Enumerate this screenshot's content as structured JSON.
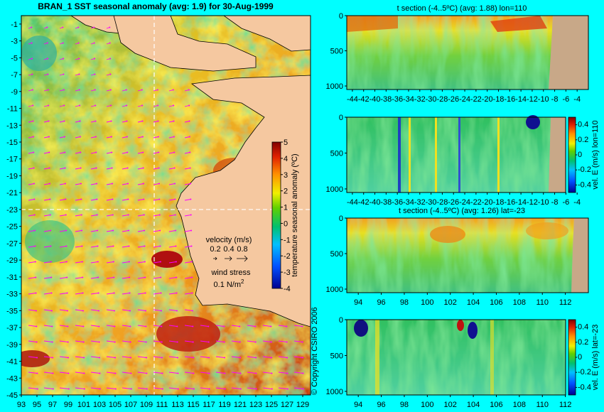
{
  "chart_data": [
    {
      "type": "heatmap",
      "title": "BRAN_1  SST seasonal anomaly  (avg: 1.9) for 30-Aug-1999",
      "x_ticks": [
        93,
        95,
        97,
        99,
        101,
        103,
        105,
        107,
        109,
        111,
        113,
        115,
        117,
        119,
        121,
        123,
        125,
        127,
        129
      ],
      "x_tick_labels": [
        "93",
        "95",
        "97",
        "99",
        "101",
        "103",
        "105",
        "107",
        "109",
        "111",
        "113",
        "115",
        "117",
        "119",
        "121",
        "123",
        "125",
        "127",
        "129"
      ],
      "y_ticks": [
        -1,
        -3,
        -5,
        -7,
        -9,
        -11,
        -13,
        -15,
        -17,
        -19,
        -21,
        -23,
        -25,
        -27,
        -29,
        -31,
        -33,
        -35,
        -37,
        -39,
        -41,
        -43,
        -45
      ],
      "y_tick_labels": [
        "-1",
        "-3",
        "-5",
        "-7",
        "-9",
        "-11",
        "-13",
        "-15",
        "-17",
        "-19",
        "-21",
        "-23",
        "-25",
        "-27",
        "-29",
        "-31",
        "-33",
        "-35",
        "-37",
        "-39",
        "-41",
        "-43",
        "-45"
      ],
      "xlim": [
        93,
        130
      ],
      "ylim": [
        -45,
        0
      ],
      "colorbar": {
        "label": "temperature seasonal anomaly (ºC)",
        "ticks": [
          5,
          4,
          3,
          2,
          1,
          0,
          -1,
          -2,
          -3,
          -4
        ],
        "tick_labels": [
          "5",
          "4",
          "3",
          "2",
          "1",
          "0",
          "-1",
          "-2",
          "-3",
          "-4"
        ],
        "range": [
          -4,
          5
        ]
      },
      "legend": {
        "velocity_title": "velocity (m/s)",
        "velocity_labels": [
          "0.2",
          "0.4",
          "0.8"
        ],
        "wind_title": "wind stress",
        "wind_value": "0.1 N/m",
        "wind_superscript": "2"
      },
      "section_lines": {
        "lon": 110,
        "lat": -23
      }
    },
    {
      "type": "heatmap",
      "title": "t section (-4..5ºC) (avg: 1.88) lon=110",
      "x_ticks": [
        -44,
        -42,
        -40,
        -38,
        -36,
        -34,
        -32,
        -30,
        -28,
        -26,
        -24,
        -22,
        -20,
        -18,
        -16,
        -14,
        -12,
        -10,
        -8,
        -6,
        -4
      ],
      "x_tick_labels": [
        "-44",
        "-42",
        "-40",
        "-38",
        "-36",
        "-34",
        "-32",
        "-30",
        "-28",
        "-26",
        "-24",
        "-22",
        "-20",
        "-18",
        "-16",
        "-14",
        "-12",
        "-10",
        "-8",
        "-6",
        "-4"
      ],
      "y_ticks": [
        0,
        500,
        1000
      ],
      "y_tick_labels": [
        "0",
        "500",
        "1000"
      ],
      "xlim": [
        -45,
        -2
      ],
      "ylim": [
        1050,
        0
      ]
    },
    {
      "type": "heatmap",
      "title": "",
      "x_ticks": [
        -44,
        -42,
        -40,
        -38,
        -36,
        -34,
        -32,
        -30,
        -28,
        -26,
        -24,
        -22,
        -20,
        -18,
        -16,
        -14,
        -12,
        -10,
        -8,
        -6,
        -4
      ],
      "x_tick_labels": [
        "-44",
        "-42",
        "-40",
        "-38",
        "-36",
        "-34",
        "-32",
        "-30",
        "-28",
        "-26",
        "-24",
        "-22",
        "-20",
        "-18",
        "-16",
        "-14",
        "-12",
        "-10",
        "-8",
        "-6",
        "-4"
      ],
      "y_ticks": [
        0,
        500,
        1000
      ],
      "y_tick_labels": [
        "0",
        "500",
        "1000"
      ],
      "xlim": [
        -45,
        -2
      ],
      "ylim": [
        1050,
        0
      ],
      "colorbar": {
        "label": "vel. E (m/s) lon=110",
        "ticks": [
          0.4,
          0.2,
          0,
          -0.2,
          -0.4
        ],
        "tick_labels": [
          "0.4",
          "0.2",
          "0",
          "-0.2",
          "-0.4"
        ],
        "range": [
          -0.5,
          0.5
        ]
      }
    },
    {
      "type": "heatmap",
      "title": "t section (-4..5ºC) (avg: 1.26) lat=-23",
      "x_ticks": [
        94,
        96,
        98,
        100,
        102,
        104,
        106,
        108,
        110,
        112
      ],
      "x_tick_labels": [
        "94",
        "96",
        "98",
        "100",
        "102",
        "104",
        "106",
        "108",
        "110",
        "112"
      ],
      "y_ticks": [
        0,
        500,
        1000
      ],
      "y_tick_labels": [
        "0",
        "500",
        "1000"
      ],
      "xlim": [
        93,
        114
      ],
      "ylim": [
        1050,
        0
      ]
    },
    {
      "type": "heatmap",
      "title": "",
      "x_ticks": [
        94,
        96,
        98,
        100,
        102,
        104,
        106,
        108,
        110,
        112
      ],
      "x_tick_labels": [
        "94",
        "96",
        "98",
        "100",
        "102",
        "104",
        "106",
        "108",
        "110",
        "112"
      ],
      "y_ticks": [
        0,
        500,
        1000
      ],
      "y_tick_labels": [
        "0",
        "500",
        "1000"
      ],
      "xlim": [
        93,
        114
      ],
      "ylim": [
        1050,
        0
      ],
      "colorbar": {
        "label": "vel. E (m/s) lat=-23",
        "ticks": [
          0.4,
          0.2,
          0,
          -0.2,
          -0.4
        ],
        "tick_labels": [
          "0.4",
          "0.2",
          "0",
          "-0.2",
          "-0.4"
        ],
        "range": [
          -0.5,
          0.5
        ]
      }
    }
  ],
  "copyright": "© Copyright CSIRO 2006"
}
